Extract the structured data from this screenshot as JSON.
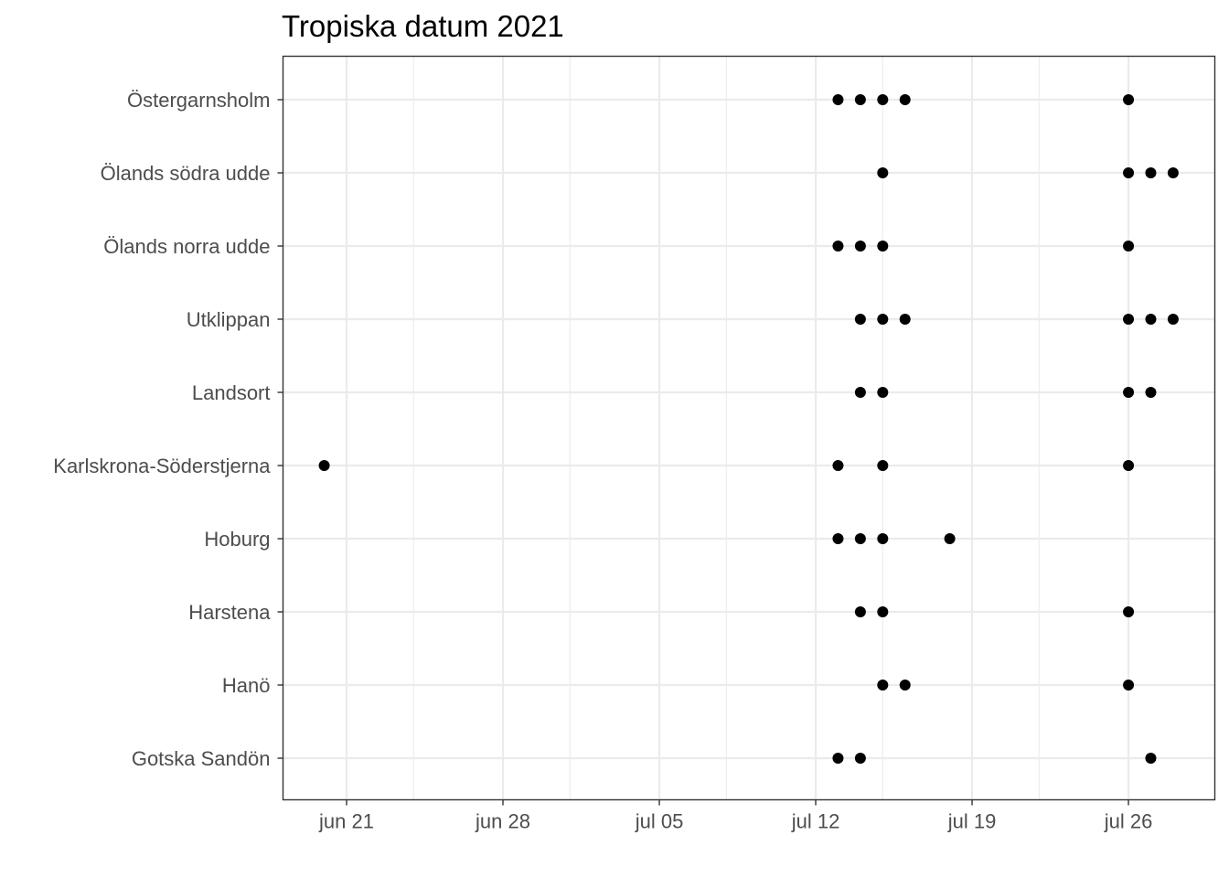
{
  "chart_data": {
    "type": "scatter",
    "title": "Tropiska datum 2021",
    "xlabel": "",
    "ylabel": "",
    "x_axis": "date",
    "xlim": [
      "2021-06-18",
      "2021-07-29"
    ],
    "x_ticks": [
      {
        "date": "2021-06-21",
        "label": "jun 21"
      },
      {
        "date": "2021-06-28",
        "label": "jun 28"
      },
      {
        "date": "2021-07-05",
        "label": "jul 05"
      },
      {
        "date": "2021-07-12",
        "label": "jul 12"
      },
      {
        "date": "2021-07-19",
        "label": "jul 19"
      },
      {
        "date": "2021-07-26",
        "label": "jul 26"
      }
    ],
    "x_minor_dates": [
      "2021-06-24",
      "2021-07-01",
      "2021-07-08",
      "2021-07-15",
      "2021-07-22"
    ],
    "categories": [
      "Östergarnsholm",
      "Ölands södra udde",
      "Ölands norra udde",
      "Utklippan",
      "Landsort",
      "Karlskrona-Söderstjerna",
      "Hoburg",
      "Harstena",
      "Hanö",
      "Gotska Sandön"
    ],
    "points": [
      {
        "station": "Östergarnsholm",
        "dates": [
          "2021-07-13",
          "2021-07-14",
          "2021-07-15",
          "2021-07-16",
          "2021-07-26"
        ]
      },
      {
        "station": "Ölands södra udde",
        "dates": [
          "2021-07-15",
          "2021-07-26",
          "2021-07-27",
          "2021-07-28"
        ]
      },
      {
        "station": "Ölands norra udde",
        "dates": [
          "2021-07-13",
          "2021-07-14",
          "2021-07-15",
          "2021-07-26"
        ]
      },
      {
        "station": "Utklippan",
        "dates": [
          "2021-07-14",
          "2021-07-15",
          "2021-07-16",
          "2021-07-26",
          "2021-07-27",
          "2021-07-28"
        ]
      },
      {
        "station": "Landsort",
        "dates": [
          "2021-07-14",
          "2021-07-15",
          "2021-07-26",
          "2021-07-27"
        ]
      },
      {
        "station": "Karlskrona-Söderstjerna",
        "dates": [
          "2021-06-20",
          "2021-07-13",
          "2021-07-15",
          "2021-07-26"
        ]
      },
      {
        "station": "Hoburg",
        "dates": [
          "2021-07-13",
          "2021-07-14",
          "2021-07-15",
          "2021-07-18"
        ]
      },
      {
        "station": "Harstena",
        "dates": [
          "2021-07-14",
          "2021-07-15",
          "2021-07-26"
        ]
      },
      {
        "station": "Hanö",
        "dates": [
          "2021-07-15",
          "2021-07-16",
          "2021-07-26"
        ]
      },
      {
        "station": "Gotska Sandön",
        "dates": [
          "2021-07-13",
          "2021-07-14",
          "2021-07-27"
        ]
      }
    ],
    "grid": true,
    "theme": "bw",
    "point_color": "#000000",
    "grid_color": "#ebebeb",
    "axis_text_color": "#4d4d4d",
    "panel_border_color": "#333333"
  }
}
